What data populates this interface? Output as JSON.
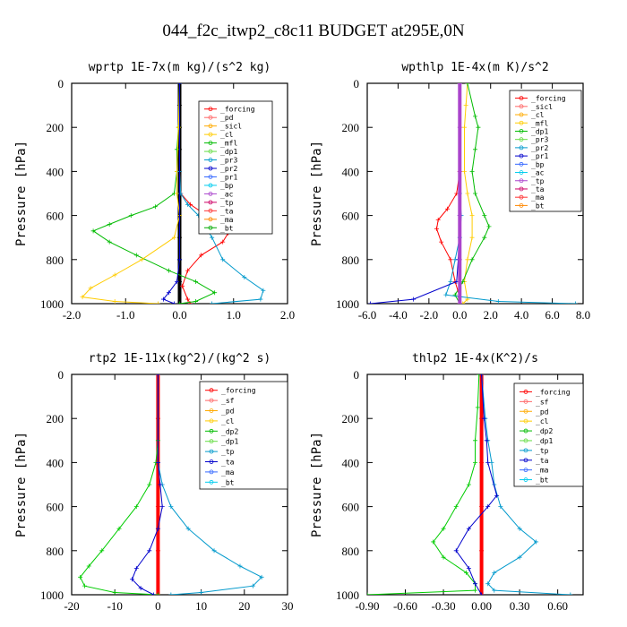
{
  "figure": {
    "title": "044_f2c_itwp2_c8c11  BUDGET at295E,0N"
  },
  "chart_data": [
    {
      "type": "line",
      "title": "wprtp   1E-7x(m kg)/(s^2 kg)",
      "ylabel": "Pressure [hPa]",
      "xlim": [
        -2.0,
        2.0
      ],
      "ylim": [
        1000,
        0
      ],
      "xticks": [
        "-2.0",
        "-1.0",
        "0.0",
        "1.0",
        "2.0"
      ],
      "yticks": [
        "0",
        "200",
        "400",
        "600",
        "800",
        "1000"
      ],
      "legend": [
        "_forcing",
        "_pd",
        "_sicl",
        "_cl",
        "_mfl",
        "_dp1",
        "_pr3",
        "_pr2",
        "_pr1",
        "_bp",
        "_ac",
        "_tp",
        "_ta",
        "_ma",
        "_bt"
      ],
      "legend_position": "top-right",
      "series": [
        {
          "color": "#000000",
          "points": [
            [
              0,
              0
            ],
            [
              0,
              100
            ],
            [
              0,
              200
            ],
            [
              0,
              300
            ],
            [
              0,
              400
            ],
            [
              0,
              500
            ],
            [
              0,
              600
            ],
            [
              0,
              700
            ],
            [
              0,
              800
            ],
            [
              0,
              900
            ],
            [
              0,
              1000
            ]
          ]
        },
        {
          "color": "#ff0000",
          "points": [
            [
              0,
              0
            ],
            [
              0,
              400
            ],
            [
              0.02,
              500
            ],
            [
              0.2,
              550
            ],
            [
              0.5,
              600
            ],
            [
              0.75,
              650
            ],
            [
              0.9,
              680
            ],
            [
              0.8,
              720
            ],
            [
              0.4,
              780
            ],
            [
              0.15,
              850
            ],
            [
              0.05,
              920
            ],
            [
              0.15,
              980
            ],
            [
              0.2,
              1000
            ]
          ]
        },
        {
          "color": "#00bb00",
          "points": [
            [
              0,
              0
            ],
            [
              -0.02,
              200
            ],
            [
              -0.05,
              300
            ],
            [
              -0.05,
              400
            ],
            [
              -0.1,
              500
            ],
            [
              -0.45,
              560
            ],
            [
              -0.9,
              600
            ],
            [
              -1.3,
              640
            ],
            [
              -1.6,
              670
            ],
            [
              -1.3,
              720
            ],
            [
              -0.8,
              780
            ],
            [
              -0.2,
              850
            ],
            [
              0.3,
              900
            ],
            [
              0.65,
              950
            ],
            [
              0.3,
              990
            ],
            [
              0,
              1000
            ]
          ]
        },
        {
          "color": "#ffcc00",
          "points": [
            [
              0,
              0
            ],
            [
              -0.02,
              200
            ],
            [
              -0.05,
              400
            ],
            [
              -0.05,
              500
            ],
            [
              0,
              600
            ],
            [
              -0.1,
              700
            ],
            [
              -0.7,
              800
            ],
            [
              -1.2,
              870
            ],
            [
              -1.65,
              930
            ],
            [
              -1.8,
              970
            ],
            [
              -1.2,
              990
            ],
            [
              -0.4,
              1000
            ]
          ]
        },
        {
          "color": "#0099cc",
          "points": [
            [
              0,
              0
            ],
            [
              0,
              400
            ],
            [
              0.02,
              500
            ],
            [
              0.15,
              550
            ],
            [
              0.35,
              600
            ],
            [
              0.6,
              700
            ],
            [
              0.8,
              800
            ],
            [
              1.2,
              880
            ],
            [
              1.55,
              940
            ],
            [
              1.5,
              980
            ],
            [
              0.6,
              1000
            ]
          ]
        },
        {
          "color": "#0000cc",
          "points": [
            [
              0,
              0
            ],
            [
              0,
              800
            ],
            [
              -0.05,
              900
            ],
            [
              -0.2,
              950
            ],
            [
              -0.3,
              980
            ],
            [
              -0.1,
              1000
            ]
          ]
        }
      ]
    },
    {
      "type": "line",
      "title": "wpthlp   1E-4x(m K)/s^2",
      "ylabel": "Pressure [hPa]",
      "xlim": [
        -6.0,
        8.0
      ],
      "ylim": [
        1000,
        0
      ],
      "xticks": [
        "-6.0",
        "-4.0",
        "-2.0",
        "0.0",
        "2.0",
        "4.0",
        "6.0",
        "8.0"
      ],
      "yticks": [
        "0",
        "200",
        "400",
        "600",
        "800",
        "1000"
      ],
      "legend": [
        "_forcing",
        "_sicl",
        "_cl",
        "_mfl",
        "_dp1",
        "_pr3",
        "_pr2",
        "_pr1",
        "_bp",
        "_ac",
        "_tp",
        "_ta",
        "_ma",
        "_bt"
      ],
      "legend_position": "top-right",
      "series": [
        {
          "color": "#ffcc00",
          "points": [
            [
              0.5,
              0
            ],
            [
              0.4,
              100
            ],
            [
              0.3,
              200
            ],
            [
              0.3,
              400
            ],
            [
              0.5,
              500
            ],
            [
              0.8,
              600
            ],
            [
              0.8,
              700
            ],
            [
              0.5,
              800
            ],
            [
              0.3,
              900
            ],
            [
              0.5,
              980
            ],
            [
              0.2,
              1000
            ]
          ]
        },
        {
          "color": "#00bb00",
          "points": [
            [
              0.5,
              0
            ],
            [
              1.0,
              150
            ],
            [
              1.2,
              200
            ],
            [
              1.0,
              300
            ],
            [
              0.8,
              400
            ],
            [
              1.0,
              500
            ],
            [
              1.6,
              600
            ],
            [
              1.9,
              650
            ],
            [
              1.6,
              700
            ],
            [
              0.8,
              800
            ],
            [
              0.2,
              900
            ],
            [
              -0.3,
              960
            ],
            [
              0,
              1000
            ]
          ]
        },
        {
          "color": "#ff0000",
          "points": [
            [
              0,
              0
            ],
            [
              0,
              400
            ],
            [
              -0.2,
              500
            ],
            [
              -0.8,
              570
            ],
            [
              -1.4,
              620
            ],
            [
              -1.5,
              660
            ],
            [
              -1.2,
              720
            ],
            [
              -0.6,
              800
            ],
            [
              -0.3,
              900
            ],
            [
              0,
              970
            ],
            [
              0,
              1000
            ]
          ]
        },
        {
          "color": "#0099cc",
          "points": [
            [
              0,
              0
            ],
            [
              0,
              500
            ],
            [
              0.1,
              600
            ],
            [
              0,
              700
            ],
            [
              -0.3,
              800
            ],
            [
              -0.6,
              900
            ],
            [
              -0.9,
              960
            ],
            [
              2.5,
              990
            ],
            [
              7.5,
              1000
            ]
          ]
        },
        {
          "color": "#0000cc",
          "points": [
            [
              0,
              0
            ],
            [
              0,
              600
            ],
            [
              -0.1,
              800
            ],
            [
              -0.2,
              900
            ],
            [
              -3.0,
              980
            ],
            [
              -5.8,
              1000
            ]
          ]
        },
        {
          "color": "#aa44cc",
          "points": [
            [
              0,
              0
            ],
            [
              0,
              200
            ],
            [
              0,
              400
            ],
            [
              0,
              600
            ],
            [
              0,
              800
            ],
            [
              0,
              1000
            ]
          ]
        }
      ]
    },
    {
      "type": "line",
      "title": "rtp2   1E-11x(kg^2)/(kg^2 s)",
      "ylabel": "Pressure [hPa]",
      "xlim": [
        -20,
        30
      ],
      "ylim": [
        1000,
        0
      ],
      "xticks": [
        "-20",
        "-10",
        "0",
        "10",
        "20",
        "30"
      ],
      "yticks": [
        "0",
        "200",
        "400",
        "600",
        "800",
        "1000"
      ],
      "legend": [
        "_forcing",
        "_sf",
        "_pd",
        "_cl",
        "_dp2",
        "_dp1",
        "_tp",
        "_ta",
        "_ma",
        "_bt"
      ],
      "legend_position": "top-right",
      "series": [
        {
          "color": "#ff0000",
          "points": [
            [
              0,
              0
            ],
            [
              0,
              200
            ],
            [
              0,
              400
            ],
            [
              0,
              600
            ],
            [
              0,
              800
            ],
            [
              0,
              1000
            ]
          ]
        },
        {
          "color": "#00cc00",
          "points": [
            [
              0,
              0
            ],
            [
              0,
              300
            ],
            [
              -0.5,
              400
            ],
            [
              -2,
              500
            ],
            [
              -5,
              600
            ],
            [
              -9,
              700
            ],
            [
              -13,
              800
            ],
            [
              -16,
              870
            ],
            [
              -18,
              920
            ],
            [
              -17,
              960
            ],
            [
              -10,
              990
            ],
            [
              0,
              1000
            ]
          ]
        },
        {
          "color": "#0099cc",
          "points": [
            [
              0,
              0
            ],
            [
              0,
              400
            ],
            [
              1,
              500
            ],
            [
              3,
              600
            ],
            [
              7,
              700
            ],
            [
              13,
              800
            ],
            [
              19,
              870
            ],
            [
              24,
              920
            ],
            [
              22,
              960
            ],
            [
              10,
              990
            ],
            [
              3,
              1000
            ]
          ]
        },
        {
          "color": "#0000cc",
          "points": [
            [
              0,
              0
            ],
            [
              0,
              400
            ],
            [
              0.5,
              500
            ],
            [
              1,
              600
            ],
            [
              0,
              700
            ],
            [
              -2,
              800
            ],
            [
              -5,
              880
            ],
            [
              -6,
              930
            ],
            [
              -4,
              970
            ],
            [
              -1,
              1000
            ]
          ]
        }
      ]
    },
    {
      "type": "line",
      "title": "thlp2   1E-4x(K^2)/s",
      "ylabel": "Pressure [hPa]",
      "xlim": [
        -0.9,
        0.8
      ],
      "ylim": [
        1000,
        0
      ],
      "xticks": [
        "-0.90",
        "-0.60",
        "-0.30",
        "0.00",
        "0.30",
        "0.60"
      ],
      "yticks": [
        "0",
        "200",
        "400",
        "600",
        "800",
        "1000"
      ],
      "legend": [
        "_forcing",
        "_sf",
        "_pd",
        "_cl",
        "_dp2",
        "_dp1",
        "_tp",
        "_ta",
        "_ma",
        "_bt"
      ],
      "legend_position": "top-right",
      "series": [
        {
          "color": "#ff0000",
          "points": [
            [
              0,
              0
            ],
            [
              0,
              200
            ],
            [
              0,
              400
            ],
            [
              0,
              600
            ],
            [
              0,
              800
            ],
            [
              0,
              1000
            ]
          ]
        },
        {
          "color": "#00cc00",
          "points": [
            [
              -0.02,
              0
            ],
            [
              -0.03,
              150
            ],
            [
              -0.05,
              300
            ],
            [
              -0.05,
              400
            ],
            [
              -0.1,
              500
            ],
            [
              -0.2,
              600
            ],
            [
              -0.3,
              700
            ],
            [
              -0.38,
              760
            ],
            [
              -0.3,
              830
            ],
            [
              -0.12,
              900
            ],
            [
              -0.05,
              950
            ],
            [
              -0.05,
              980
            ],
            [
              -0.9,
              1000
            ]
          ]
        },
        {
          "color": "#0099cc",
          "points": [
            [
              0,
              0
            ],
            [
              0.03,
              200
            ],
            [
              0.05,
              300
            ],
            [
              0.08,
              400
            ],
            [
              0.1,
              500
            ],
            [
              0.15,
              600
            ],
            [
              0.3,
              700
            ],
            [
              0.43,
              760
            ],
            [
              0.3,
              830
            ],
            [
              0.1,
              900
            ],
            [
              0.05,
              950
            ],
            [
              0.1,
              980
            ],
            [
              0.7,
              1000
            ]
          ]
        },
        {
          "color": "#0000cc",
          "points": [
            [
              0,
              0
            ],
            [
              0.02,
              200
            ],
            [
              0.04,
              300
            ],
            [
              0.05,
              400
            ],
            [
              0.12,
              550
            ],
            [
              0.05,
              600
            ],
            [
              -0.1,
              700
            ],
            [
              -0.2,
              800
            ],
            [
              -0.1,
              880
            ],
            [
              -0.05,
              950
            ],
            [
              0,
              1000
            ]
          ]
        }
      ]
    }
  ]
}
